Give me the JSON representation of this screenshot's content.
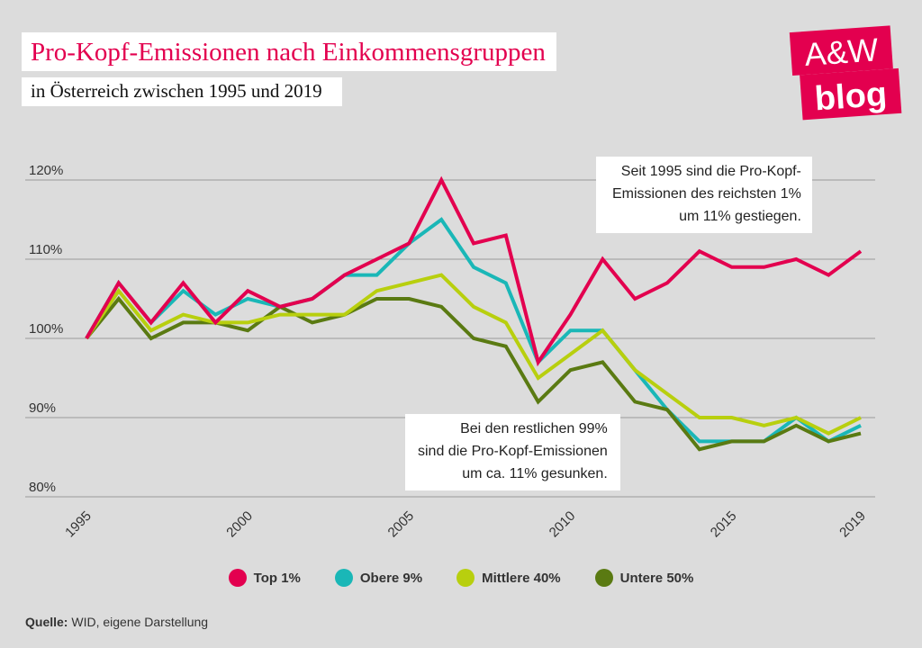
{
  "title": "Pro-Kopf-Emissionen nach Einkommensgruppen",
  "subtitle": "in Österreich zwischen 1995 und 2019",
  "logo": {
    "line1": "A&W",
    "line2": "blog",
    "color": "#e3004f"
  },
  "annotations": {
    "top": [
      "Seit 1995 sind die Pro-Kopf-",
      "Emissionen des reichsten 1%",
      "um 11% gestiegen."
    ],
    "bottom": [
      "Bei den restlichen 99%",
      "sind die Pro-Kopf-Emissionen",
      "um ca. 11% gesunken."
    ]
  },
  "source": {
    "label": "Quelle:",
    "text": " WID, eigene Darstellung"
  },
  "chart_data": {
    "type": "line",
    "title": "Pro-Kopf-Emissionen nach Einkommensgruppen",
    "xlabel": "",
    "ylabel": "",
    "x": [
      1995,
      1996,
      1997,
      1998,
      1999,
      2000,
      2001,
      2002,
      2003,
      2004,
      2005,
      2006,
      2007,
      2008,
      2009,
      2010,
      2011,
      2012,
      2013,
      2014,
      2015,
      2016,
      2017,
      2018,
      2019
    ],
    "xticks": [
      1995,
      2000,
      2005,
      2010,
      2015,
      2019
    ],
    "yticks": [
      80,
      90,
      100,
      110,
      120
    ],
    "ytick_labels": [
      "80%",
      "90%",
      "100%",
      "110%",
      "120%"
    ],
    "ylim": [
      80,
      120
    ],
    "legend_position": "bottom",
    "series": [
      {
        "name": "Obere 9%",
        "color": "#1ab7b7",
        "values": [
          100,
          107,
          102,
          106,
          103,
          105,
          104,
          105,
          108,
          108,
          112,
          115,
          109,
          107,
          97,
          101,
          101,
          96,
          91,
          87,
          87,
          87,
          90,
          87,
          89
        ]
      },
      {
        "name": "Untere 50%",
        "color": "#5a7a12",
        "values": [
          100,
          105,
          100,
          102,
          102,
          101,
          104,
          102,
          103,
          105,
          105,
          104,
          100,
          99,
          92,
          96,
          97,
          92,
          91,
          86,
          87,
          87,
          89,
          87,
          88
        ]
      },
      {
        "name": "Mittlere 40%",
        "color": "#b8cf0e",
        "values": [
          100,
          106,
          101,
          103,
          102,
          102,
          103,
          103,
          103,
          106,
          107,
          108,
          104,
          102,
          95,
          98,
          101,
          96,
          93,
          90,
          90,
          89,
          90,
          88,
          90
        ]
      },
      {
        "name": "Top 1%",
        "color": "#e3004f",
        "values": [
          100,
          107,
          102,
          107,
          102,
          106,
          104,
          105,
          108,
          110,
          112,
          120,
          112,
          113,
          97,
          103,
          110,
          105,
          107,
          111,
          109,
          109,
          110,
          108,
          111
        ]
      }
    ],
    "legend": [
      {
        "name": "Top 1%",
        "color": "#e3004f"
      },
      {
        "name": "Obere 9%",
        "color": "#1ab7b7"
      },
      {
        "name": "Mittlere 40%",
        "color": "#b8cf0e"
      },
      {
        "name": "Untere 50%",
        "color": "#5a7a12"
      }
    ]
  }
}
